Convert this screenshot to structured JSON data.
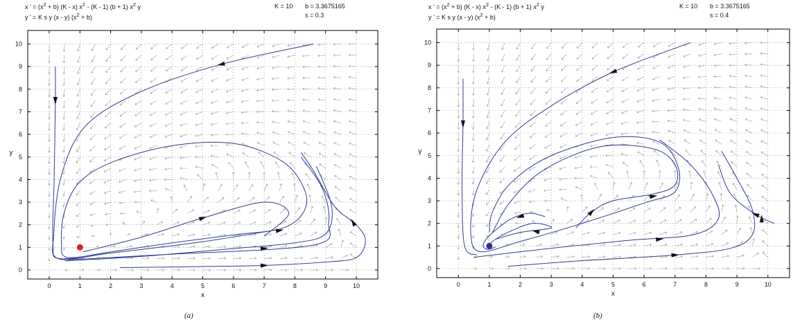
{
  "panels": [
    {
      "id": "a",
      "eq1_pre": "x ' = (x",
      "eq1_sup1": "2",
      "eq1_mid": " + b) (K - x) x",
      "eq1_sup2": "2",
      "eq1_mid2": " - (K - 1) (b + 1) x",
      "eq1_sup3": "2",
      "eq1_post": " y",
      "eq2_pre": "y ' = K s y (x - y) (x",
      "eq2_sup": "2",
      "eq2_post": " + b)",
      "param_K": "K = 10",
      "param_b": "b = 3.3675165",
      "param_s": "s = 0.3",
      "caption": "(a)"
    },
    {
      "id": "b",
      "eq1_pre": "x ' = (x",
      "eq1_sup1": "2",
      "eq1_mid": " + b) (K - x) x",
      "eq1_sup2": "2",
      "eq1_mid2": " - (K - 1) (b + 1) x",
      "eq1_sup3": "2",
      "eq1_post": " y",
      "eq2_pre": "y ' = K s y (x - y) (x",
      "eq2_sup": "2",
      "eq2_post": " + b)",
      "param_K": "K = 10",
      "param_b": "b = 3.3675165",
      "param_s": "s = 0.4",
      "caption": "(b)"
    }
  ],
  "chart_data": [
    {
      "type": "line",
      "title": "",
      "xlabel": "x",
      "ylabel": "y",
      "xlim": [
        -0.7,
        10.7
      ],
      "ylim": [
        -0.4,
        10.6
      ],
      "xticks": [
        0,
        1,
        2,
        3,
        4,
        5,
        6,
        7,
        8,
        9,
        10
      ],
      "yticks": [
        0,
        1,
        2,
        3,
        4,
        5,
        6,
        7,
        8,
        9,
        10
      ],
      "grid": "dotted",
      "params": {
        "K": 10,
        "b": 3.3675165,
        "s": 0.3
      },
      "marker": {
        "x": 1,
        "y": 1,
        "color": "#e02020",
        "kind": "equilibrium point"
      },
      "series": [
        {
          "points": [
            [
              0.2,
              9.0
            ],
            [
              0.2,
              7.5
            ],
            [
              0.16,
              4.0
            ],
            [
              0.12,
              1.2
            ],
            [
              0.35,
              0.5
            ],
            [
              2,
              0.8
            ],
            [
              4,
              1.2
            ],
            [
              6,
              1.55
            ],
            [
              7.6,
              1.85
            ],
            [
              8.3,
              2.6
            ],
            [
              8.3,
              3.6
            ],
            [
              7.6,
              4.8
            ],
            [
              6,
              5.6
            ],
            [
              4,
              5.5
            ],
            [
              2.1,
              4.8
            ],
            [
              1,
              3.9
            ],
            [
              0.5,
              2.6
            ],
            [
              0.4,
              1.2
            ],
            [
              0.6,
              0.55
            ],
            [
              2,
              0.8
            ]
          ],
          "arrows": [
            [
              0.2,
              7.5
            ]
          ]
        },
        {
          "points": [
            [
              8.6,
              10.0
            ],
            [
              5.6,
              9.1
            ],
            [
              3,
              7.9
            ],
            [
              1.2,
              6.4
            ],
            [
              0.4,
              4.2
            ],
            [
              0.15,
              1.6
            ],
            [
              0.3,
              0.5
            ],
            [
              2,
              0.75
            ],
            [
              5,
              1.25
            ],
            [
              7.5,
              1.8
            ]
          ],
          "arrows": [
            [
              5.6,
              9.1
            ],
            [
              7.5,
              1.75
            ]
          ]
        },
        {
          "points": [
            [
              1.1,
              0.8
            ],
            [
              3,
              1.45
            ],
            [
              5,
              2.3
            ],
            [
              7,
              3.0
            ],
            [
              7.8,
              2.5
            ],
            [
              7,
              1.5
            ]
          ],
          "arrows": [
            [
              5,
              2.3
            ]
          ]
        },
        {
          "points": [
            [
              2.3,
              0.1
            ],
            [
              5,
              0.15
            ],
            [
              7,
              0.2
            ],
            [
              9,
              0.35
            ],
            [
              10,
              0.55
            ],
            [
              10.3,
              1.3
            ],
            [
              10,
              2.0
            ],
            [
              9.3,
              2.8
            ],
            [
              8.6,
              4.4
            ],
            [
              8.2,
              5.2
            ]
          ],
          "arrows": [
            [
              7,
              0.2
            ],
            [
              9.9,
              2.1
            ]
          ]
        },
        {
          "points": [
            [
              0.5,
              0.4
            ],
            [
              3,
              0.6
            ],
            [
              6,
              0.95
            ],
            [
              8,
              1.2
            ],
            [
              9,
              1.6
            ],
            [
              9.2,
              2.8
            ],
            [
              8.7,
              4.6
            ]
          ],
          "arrows": [
            [
              7,
              0.95
            ]
          ]
        },
        {
          "points": [
            [
              0.6,
              0.45
            ],
            [
              4,
              0.7
            ],
            [
              8.6,
              1.1
            ],
            [
              9.1,
              2.1
            ],
            [
              8.9,
              3.6
            ],
            [
              8.2,
              5.0
            ]
          ],
          "arrows": []
        }
      ]
    },
    {
      "type": "line",
      "title": "",
      "xlabel": "x",
      "ylabel": "y",
      "xlim": [
        -0.7,
        10.7
      ],
      "ylim": [
        -0.4,
        10.6
      ],
      "xticks": [
        0,
        1,
        2,
        3,
        4,
        5,
        6,
        7,
        8,
        9,
        10
      ],
      "yticks": [
        0,
        1,
        2,
        3,
        4,
        5,
        6,
        7,
        8,
        9,
        10
      ],
      "grid": "dotted",
      "params": {
        "K": 10,
        "b": 3.3675165,
        "s": 0.4
      },
      "marker": {
        "x": 1,
        "y": 1,
        "color": "#3a2f8f",
        "kind": "equilibrium point"
      },
      "series": [
        {
          "points": [
            [
              0.15,
              8.4
            ],
            [
              0.15,
              6.5
            ],
            [
              0.12,
              3.5
            ],
            [
              0.2,
              1.0
            ],
            [
              0.6,
              0.6
            ]
          ],
          "arrows": [
            [
              0.15,
              6.4
            ]
          ]
        },
        {
          "points": [
            [
              7.5,
              10.0
            ],
            [
              5,
              8.7
            ],
            [
              3,
              7.2
            ],
            [
              1.5,
              5.6
            ],
            [
              0.6,
              3.5
            ],
            [
              0.4,
              1.6
            ],
            [
              0.7,
              0.75
            ],
            [
              2,
              1.2
            ],
            [
              4,
              2.0
            ],
            [
              6,
              2.9
            ],
            [
              7,
              3.4
            ],
            [
              7.1,
              4.5
            ],
            [
              6.5,
              5.6
            ],
            [
              5,
              5.8
            ],
            [
              3,
              5.0
            ],
            [
              1.7,
              3.8
            ],
            [
              1.1,
              2.5
            ],
            [
              1,
              1.6
            ]
          ],
          "arrows": [
            [
              5,
              8.7
            ]
          ]
        },
        {
          "points": [
            [
              2.8,
              2.3
            ],
            [
              2.3,
              2.45
            ],
            [
              1.7,
              2.2
            ],
            [
              1.2,
              1.7
            ],
            [
              0.9,
              1.3
            ],
            [
              0.8,
              1.0
            ],
            [
              0.95,
              0.85
            ],
            [
              1.2,
              0.95
            ]
          ],
          "arrows": [
            [
              2.0,
              2.3
            ]
          ]
        },
        {
          "points": [
            [
              1.2,
              1.3
            ],
            [
              2,
              1.6
            ],
            [
              3,
              1.8
            ],
            [
              2.4,
              2.0
            ],
            [
              1.6,
              1.6
            ],
            [
              1.1,
              1.2
            ],
            [
              1.0,
              1.0
            ]
          ],
          "arrows": [
            [
              2.5,
              1.65
            ]
          ]
        },
        {
          "points": [
            [
              3.8,
              1.8
            ],
            [
              4.3,
              2.5
            ],
            [
              5,
              3.0
            ],
            [
              6.3,
              3.3
            ],
            [
              7,
              3.7
            ],
            [
              7.0,
              4.6
            ],
            [
              6.3,
              5.3
            ],
            [
              4.6,
              5.4
            ],
            [
              2.8,
              4.4
            ],
            [
              1.7,
              3.0
            ],
            [
              1.1,
              1.6
            ]
          ],
          "arrows": [
            [
              4.3,
              2.5
            ],
            [
              6.3,
              3.2
            ]
          ]
        },
        {
          "points": [
            [
              0.5,
              0.5
            ],
            [
              3,
              0.9
            ],
            [
              5.5,
              1.25
            ],
            [
              7.6,
              1.5
            ],
            [
              8.4,
              2.2
            ],
            [
              8.2,
              3.3
            ],
            [
              7.5,
              4.6
            ],
            [
              6.5,
              5.7
            ]
          ],
          "arrows": [
            [
              6.5,
              1.3
            ]
          ]
        },
        {
          "points": [
            [
              1.6,
              0.1
            ],
            [
              4,
              0.35
            ],
            [
              7,
              0.6
            ],
            [
              8.8,
              0.9
            ],
            [
              9.5,
              1.5
            ],
            [
              9.5,
              2.6
            ],
            [
              9.0,
              4.0
            ],
            [
              8.5,
              5.2
            ]
          ],
          "arrows": [
            [
              7,
              0.6
            ],
            [
              9.8,
              2.2
            ]
          ]
        },
        {
          "points": [
            [
              10.2,
              2.0
            ],
            [
              9.6,
              2.4
            ],
            [
              8.8,
              3.3
            ],
            [
              8.4,
              4.6
            ]
          ],
          "arrows": [
            [
              9.6,
              2.4
            ]
          ]
        }
      ]
    }
  ]
}
